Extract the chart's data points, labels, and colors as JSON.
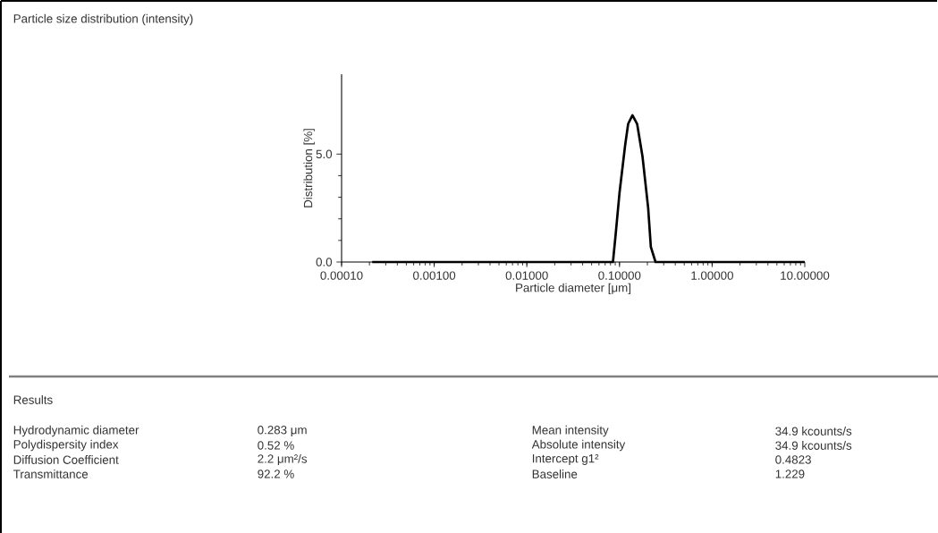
{
  "chart_data": {
    "type": "line",
    "title": "Particle size distribution (intensity)",
    "xlabel": "Particle diameter [μm]",
    "ylabel": "Distribution [%]",
    "series": [
      {
        "color": "#000000",
        "x": [
          0.000214,
          0.01,
          0.085,
          0.091,
          0.1,
          0.115,
          0.124,
          0.138,
          0.155,
          0.177,
          0.204,
          0.218,
          0.245,
          1,
          10
        ],
        "values": [
          0,
          0,
          0,
          1.3,
          3.2,
          5.4,
          6.4,
          6.8,
          6.4,
          4.9,
          2.5,
          0.7,
          0,
          0,
          0
        ]
      }
    ],
    "log": "x",
    "xlim": [
      0.0001,
      10
    ],
    "ylim": [
      0,
      8.7
    ],
    "xticks": [
      {
        "value": 0.0001,
        "label": "0.00010"
      },
      {
        "value": 0.001,
        "label": "0.00100"
      },
      {
        "value": 0.01,
        "label": "0.01000"
      },
      {
        "value": 0.1,
        "label": "0.10000"
      },
      {
        "value": 1,
        "label": "1.00000"
      },
      {
        "value": 10,
        "label": "10.00000"
      }
    ],
    "yticks": [
      {
        "value": 0,
        "label": "0.0"
      },
      {
        "value": 5,
        "label": "5.0"
      }
    ],
    "marker": "none",
    "line_style": "solid",
    "annotations": [
      "Results",
      "Hydrodynamic diameter",
      "0.283 μm",
      "Mean intensity",
      "34.9  kcounts/s",
      "Polydispersity index",
      "0.52 %",
      "Absolute intensity",
      "34.9  kcounts/s",
      "Diffusion Coefficient",
      "2.2 μm²/s",
      "Intercept g1²",
      "0.4823",
      "Transmittance",
      "92.2 %",
      "Baseline",
      "1.229"
    ]
  }
}
